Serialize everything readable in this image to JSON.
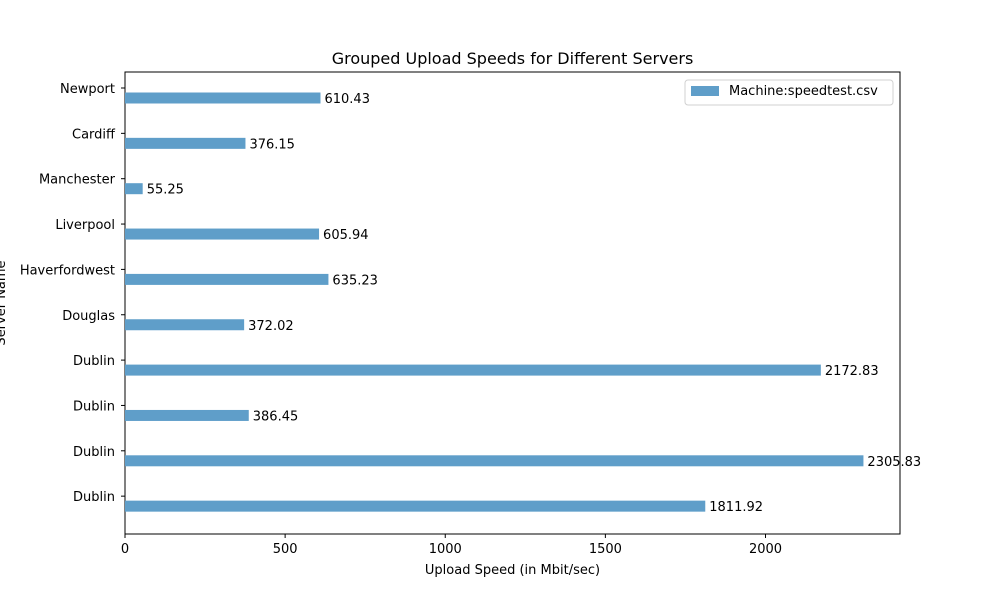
{
  "chart_data": {
    "type": "bar",
    "orientation": "horizontal",
    "title": "Grouped Upload Speeds for Different Servers",
    "xlabel": "Upload Speed (in Mbit/sec)",
    "ylabel": "Server Name",
    "xlim": [
      0,
      2420
    ],
    "xticks": [
      0,
      500,
      1000,
      1500,
      2000
    ],
    "categories": [
      "Newport",
      "Cardiff",
      "Manchester",
      "Liverpool",
      "Haverfordwest",
      "Douglas",
      "Dublin",
      "Dublin",
      "Dublin",
      "Dublin"
    ],
    "series": [
      {
        "name": "Machine:speedtest.csv",
        "values": [
          610.43,
          376.15,
          55.25,
          605.94,
          635.23,
          372.02,
          2172.83,
          386.45,
          2305.83,
          1811.92
        ],
        "color": "#5f9ec9"
      }
    ],
    "data_labels": [
      "610.43",
      "376.15",
      "55.25",
      "605.94",
      "635.23",
      "372.02",
      "2172.83",
      "386.45",
      "2305.83",
      "1811.92"
    ],
    "legend": "top-right",
    "grid": false
  }
}
